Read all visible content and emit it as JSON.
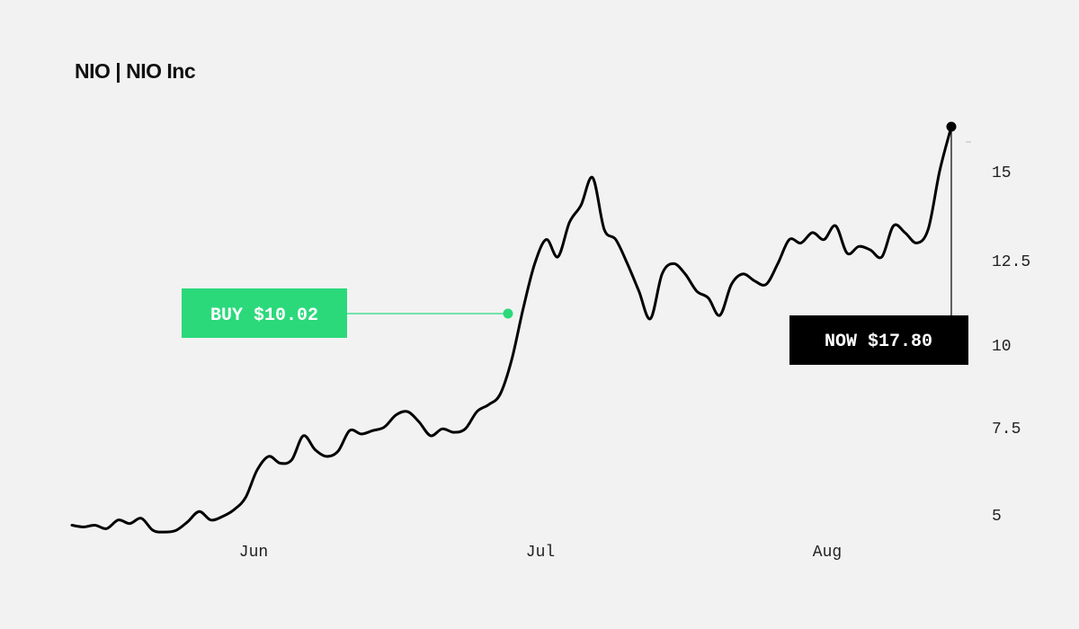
{
  "title": "NIO | NIO Inc",
  "colors": {
    "background": "#f2f2f2",
    "line": "#000000",
    "buy": "#2bd97b",
    "now_box": "#000000",
    "now_text": "#ffffff",
    "buy_text": "#ffffff",
    "axis_text": "#222222"
  },
  "chart_data": {
    "type": "line",
    "title": "NIO | NIO Inc",
    "xlabel": "",
    "ylabel": "",
    "x_tick_labels": [
      "Jun",
      "Jul",
      "Aug"
    ],
    "y_ticks": [
      5,
      7.5,
      10,
      12.5,
      15
    ],
    "y_tick_labels": [
      "5",
      "7.5",
      "10",
      "12.5",
      "15"
    ],
    "ylim": [
      4.5,
      16.5
    ],
    "grid": false,
    "series": [
      {
        "values": [
          4.7,
          4.65,
          4.7,
          4.6,
          4.85,
          4.75,
          4.9,
          4.55,
          4.5,
          4.55,
          4.8,
          5.1,
          4.85,
          4.95,
          5.15,
          5.5,
          6.3,
          6.7,
          6.5,
          6.6,
          7.3,
          6.9,
          6.7,
          6.85,
          7.45,
          7.35,
          7.45,
          7.55,
          7.9,
          8.0,
          7.7,
          7.3,
          7.5,
          7.4,
          7.5,
          8.0,
          8.2,
          8.5,
          9.5,
          11.0,
          12.3,
          13.0,
          12.5,
          13.5,
          14.0,
          14.8,
          13.3,
          13.0,
          12.3,
          11.5,
          10.7,
          12.0,
          12.3,
          12.0,
          11.5,
          11.3,
          10.8,
          11.7,
          12.0,
          11.8,
          11.7,
          12.3,
          13.0,
          12.9,
          13.2,
          13.0,
          13.4,
          12.6,
          12.8,
          12.7,
          12.5,
          13.4,
          13.2,
          12.9,
          13.3,
          15.0,
          17.8
        ]
      }
    ],
    "annotations": [
      {
        "kind": "buy",
        "label": "BUY $10.02",
        "value": 10.02
      },
      {
        "kind": "now",
        "label": "NOW $17.80",
        "value": 17.8
      }
    ]
  }
}
